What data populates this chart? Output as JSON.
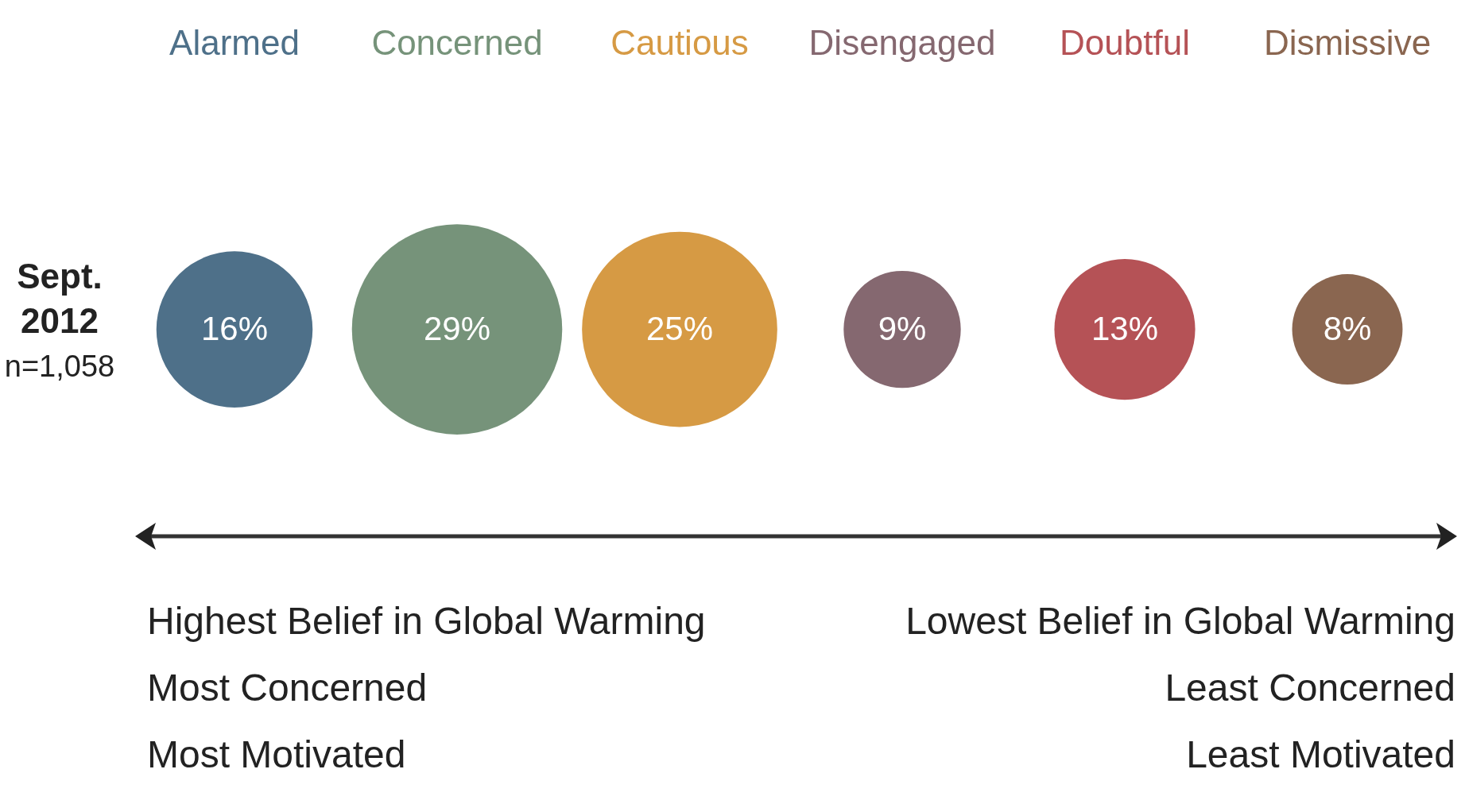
{
  "chart_data": {
    "type": "other",
    "categories": [
      "Alarmed",
      "Concerned",
      "Cautious",
      "Disengaged",
      "Doubtful",
      "Dismissive"
    ],
    "values": [
      16,
      29,
      25,
      9,
      13,
      8
    ],
    "value_labels": [
      "16%",
      "29%",
      "25%",
      "9%",
      "13%",
      "8%"
    ],
    "colors": [
      "#4e7089",
      "#76937a",
      "#d69a44",
      "#856870",
      "#b55256",
      "#8a6650"
    ],
    "annotations": [
      "Sept. 2012",
      "n=1,058",
      "Highest Belief in Global Warming",
      "Most Concerned",
      "Most Motivated",
      "Lowest Belief in Global Warming",
      "Least Concerned",
      "Least Motivated"
    ]
  }
}
